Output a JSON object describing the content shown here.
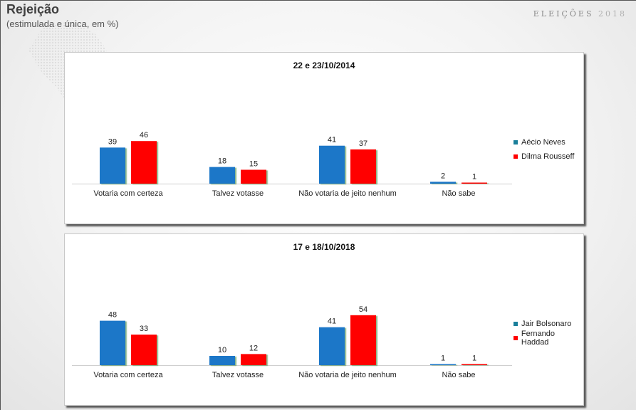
{
  "header": {
    "title": "Rejeição",
    "subtitle": "(estimulada e única, em %)",
    "brand_word": "ELEIÇÕES",
    "brand_year": "2018"
  },
  "colors": {
    "series_blue": "#1f77c8",
    "series_red": "#ff0000",
    "legend_teal": "#1a7f9a"
  },
  "chart_data": [
    {
      "type": "bar",
      "title": "22 e 23/10/2014",
      "categories": [
        "Votaria com certeza",
        "Talvez votasse",
        "Não votaria de jeito nenhum",
        "Não sabe"
      ],
      "series": [
        {
          "name": "Aécio Neves",
          "values": [
            39,
            18,
            41,
            2
          ]
        },
        {
          "name": "Dilma Rousseff",
          "values": [
            46,
            15,
            37,
            1
          ]
        }
      ],
      "ylim": [
        0,
        60
      ],
      "grid": false,
      "legend": "right"
    },
    {
      "type": "bar",
      "title": "17 e 18/10/2018",
      "categories": [
        "Votaria com certeza",
        "Talvez votasse",
        "Não votaria de jeito nenhum",
        "Não sabe"
      ],
      "series": [
        {
          "name": "Jair Bolsonaro",
          "values": [
            48,
            10,
            41,
            1
          ]
        },
        {
          "name": "Fernando Haddad",
          "values": [
            33,
            12,
            54,
            1
          ]
        }
      ],
      "ylim": [
        0,
        60
      ],
      "grid": false,
      "legend": "right"
    }
  ]
}
